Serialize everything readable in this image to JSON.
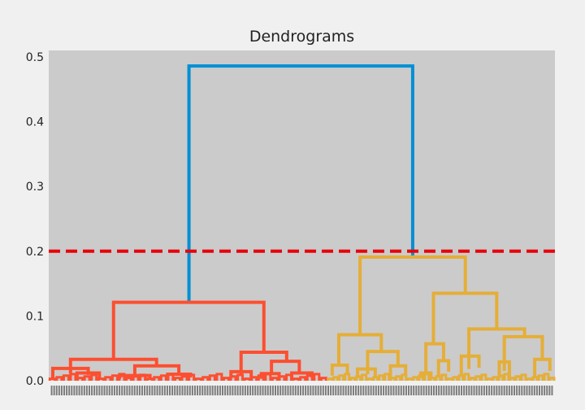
{
  "chart_data": {
    "type": "dendrogram",
    "title": "Dendrograms",
    "xlabel": "",
    "ylabel": "",
    "ylim": [
      0,
      0.51
    ],
    "yticks": [
      0.0,
      0.1,
      0.2,
      0.3,
      0.4,
      0.5
    ],
    "grid": false,
    "plot_background": "#cbcbcb",
    "figure_background": "#f0f0f0",
    "threshold_line": {
      "y": 0.2,
      "color": "#e8000b",
      "style": "dashed"
    },
    "leaf_labels": "dense unreadable sample index labels along the x-axis",
    "clusters": [
      {
        "color": "#fc4f30",
        "leaf_span": [
          0,
          0.55
        ]
      },
      {
        "color": "#e5ae38",
        "leaf_span": [
          0.55,
          1.0
        ]
      }
    ],
    "link_color_above_threshold": "#008fd5",
    "merges": [
      {
        "x": [
          0.277,
          0.277,
          0.719,
          0.719
        ],
        "y": [
          0.121,
          0.486,
          0.486,
          0.191
        ],
        "color": "#008fd5"
      },
      {
        "x": [
          0.128,
          0.128,
          0.425,
          0.425
        ],
        "y": [
          0.033,
          0.121,
          0.121,
          0.044
        ],
        "color": "#fc4f30"
      },
      {
        "x": [
          0.043,
          0.043,
          0.213,
          0.213
        ],
        "y": [
          0.011,
          0.033,
          0.033,
          0.023
        ],
        "color": "#fc4f30"
      },
      {
        "x": [
          0.008,
          0.008,
          0.078,
          0.078
        ],
        "y": [
          0.004,
          0.019,
          0.019,
          0.009
        ],
        "color": "#fc4f30"
      },
      {
        "x": [
          0.056,
          0.056,
          0.1,
          0.1
        ],
        "y": [
          0.006,
          0.012,
          0.012,
          0.004
        ],
        "color": "#fc4f30"
      },
      {
        "x": [
          0.17,
          0.17,
          0.257,
          0.257
        ],
        "y": [
          0.008,
          0.023,
          0.023,
          0.01
        ],
        "color": "#fc4f30"
      },
      {
        "x": [
          0.14,
          0.14,
          0.2,
          0.2
        ],
        "y": [
          0.003,
          0.008,
          0.008,
          0.004
        ],
        "color": "#fc4f30"
      },
      {
        "x": [
          0.235,
          0.235,
          0.28,
          0.28
        ],
        "y": [
          0.003,
          0.01,
          0.01,
          0.005
        ],
        "color": "#fc4f30"
      },
      {
        "x": [
          0.38,
          0.38,
          0.47,
          0.47
        ],
        "y": [
          0.01,
          0.044,
          0.044,
          0.03
        ],
        "color": "#fc4f30"
      },
      {
        "x": [
          0.36,
          0.36,
          0.4,
          0.4
        ],
        "y": [
          0.004,
          0.014,
          0.014,
          0.005
        ],
        "color": "#fc4f30"
      },
      {
        "x": [
          0.44,
          0.44,
          0.495,
          0.495
        ],
        "y": [
          0.011,
          0.03,
          0.03,
          0.012
        ],
        "color": "#fc4f30"
      },
      {
        "x": [
          0.42,
          0.42,
          0.455,
          0.455
        ],
        "y": [
          0.003,
          0.011,
          0.011,
          0.004
        ],
        "color": "#fc4f30"
      },
      {
        "x": [
          0.48,
          0.48,
          0.52,
          0.52
        ],
        "y": [
          0.004,
          0.012,
          0.012,
          0.005
        ],
        "color": "#fc4f30"
      },
      {
        "x": [
          0.615,
          0.615,
          0.823,
          0.823
        ],
        "y": [
          0.071,
          0.191,
          0.191,
          0.135
        ],
        "color": "#e5ae38"
      },
      {
        "x": [
          0.573,
          0.573,
          0.657,
          0.657
        ],
        "y": [
          0.024,
          0.071,
          0.071,
          0.045
        ],
        "color": "#e5ae38"
      },
      {
        "x": [
          0.56,
          0.56,
          0.59,
          0.59
        ],
        "y": [
          0.008,
          0.024,
          0.024,
          0.012
        ],
        "color": "#e5ae38"
      },
      {
        "x": [
          0.63,
          0.63,
          0.69,
          0.69
        ],
        "y": [
          0.01,
          0.045,
          0.045,
          0.023
        ],
        "color": "#e5ae38"
      },
      {
        "x": [
          0.61,
          0.61,
          0.645,
          0.645
        ],
        "y": [
          0.004,
          0.018,
          0.018,
          0.006
        ],
        "color": "#e5ae38"
      },
      {
        "x": [
          0.675,
          0.675,
          0.705,
          0.705
        ],
        "y": [
          0.006,
          0.023,
          0.023,
          0.008
        ],
        "color": "#e5ae38"
      },
      {
        "x": [
          0.76,
          0.76,
          0.885,
          0.885
        ],
        "y": [
          0.057,
          0.135,
          0.135,
          0.08
        ],
        "color": "#e5ae38"
      },
      {
        "x": [
          0.745,
          0.745,
          0.78,
          0.78
        ],
        "y": [
          0.012,
          0.057,
          0.057,
          0.031
        ],
        "color": "#e5ae38"
      },
      {
        "x": [
          0.735,
          0.735,
          0.755,
          0.755
        ],
        "y": [
          0.004,
          0.012,
          0.012,
          0.006
        ],
        "color": "#e5ae38"
      },
      {
        "x": [
          0.77,
          0.77,
          0.79,
          0.79
        ],
        "y": [
          0.006,
          0.031,
          0.031,
          0.014
        ],
        "color": "#e5ae38"
      },
      {
        "x": [
          0.83,
          0.83,
          0.94,
          0.94
        ],
        "y": [
          0.018,
          0.08,
          0.08,
          0.068
        ],
        "color": "#e5ae38"
      },
      {
        "x": [
          0.815,
          0.815,
          0.85,
          0.85
        ],
        "y": [
          0.008,
          0.038,
          0.038,
          0.02
        ],
        "color": "#e5ae38"
      },
      {
        "x": [
          0.9,
          0.9,
          0.975,
          0.975
        ],
        "y": [
          0.015,
          0.068,
          0.068,
          0.033
        ],
        "color": "#e5ae38"
      },
      {
        "x": [
          0.89,
          0.89,
          0.91,
          0.91
        ],
        "y": [
          0.004,
          0.029,
          0.029,
          0.006
        ],
        "color": "#e5ae38"
      },
      {
        "x": [
          0.96,
          0.96,
          0.99,
          0.99
        ],
        "y": [
          0.004,
          0.033,
          0.033,
          0.015
        ],
        "color": "#e5ae38"
      }
    ]
  }
}
